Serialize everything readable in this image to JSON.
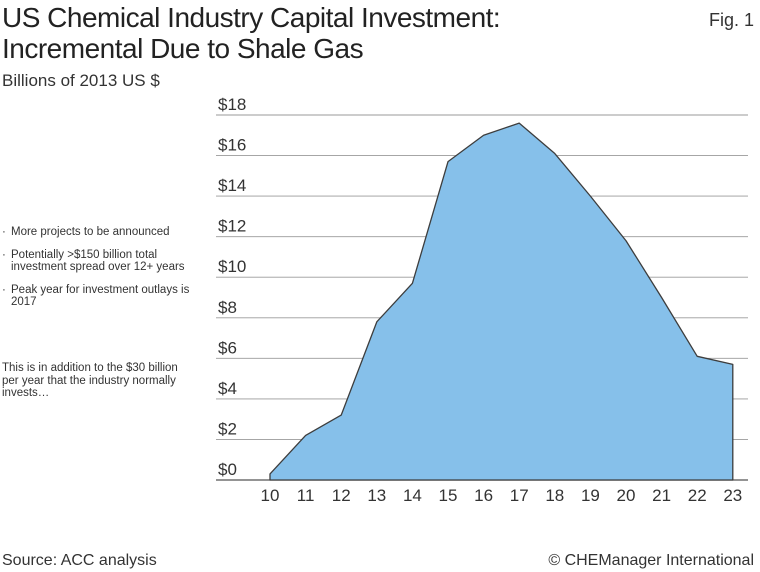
{
  "header": {
    "title_line1": "US Chemical Industry Capital Investment:",
    "title_line2": "Incremental Due to Shale Gas",
    "fig_label": "Fig. 1",
    "subtitle": "Billions of 2013 US $"
  },
  "sidebar": {
    "bullets": [
      "More projects to be announced",
      "Potentially >$150 billion total investment spread over 12+ years",
      "Peak year for investment outlays is 2017"
    ],
    "note": "This is in addition to the $30 billion per year that the industry normally invests…"
  },
  "footer": {
    "source": "Source: ACC analysis",
    "credit": "© CHEManager International"
  },
  "colors": {
    "area_fill": "#86c0ea",
    "area_stroke": "#3d3d3d",
    "grid": "#9a9a9a"
  },
  "chart_data": {
    "type": "area",
    "title": "US Chemical Industry Capital Investment: Incremental Due to Shale Gas",
    "ylabel": "Billions of 2013 US $",
    "xlabel": "",
    "categories": [
      "10",
      "11",
      "12",
      "13",
      "14",
      "15",
      "16",
      "17",
      "18",
      "19",
      "20",
      "21",
      "22",
      "23"
    ],
    "values": [
      0.3,
      2.2,
      3.2,
      7.8,
      9.7,
      15.7,
      17.0,
      17.6,
      16.1,
      14.0,
      11.8,
      9.0,
      6.1,
      5.7
    ],
    "ylim": [
      0,
      18
    ],
    "yticks": [
      0,
      2,
      4,
      6,
      8,
      10,
      12,
      14,
      16,
      18
    ],
    "ytick_labels": [
      "$0",
      "$2",
      "$4",
      "$6",
      "$8",
      "$10",
      "$12",
      "$14",
      "$16",
      "$18"
    ],
    "grid": true
  }
}
